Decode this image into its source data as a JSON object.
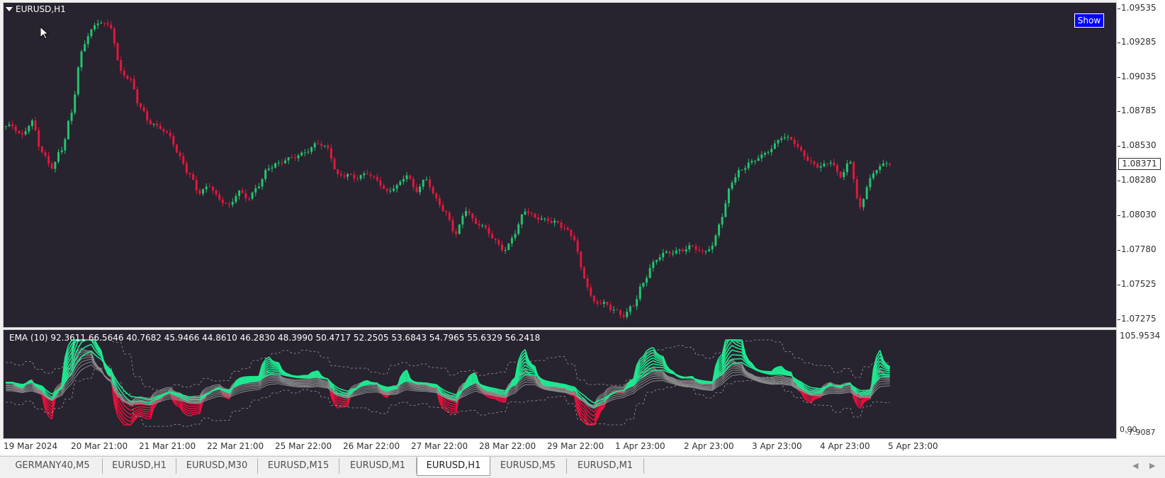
{
  "window": {
    "symbol_title": "EURUSD,H1",
    "show_button": "Show"
  },
  "price_axis": {
    "labels": [
      "1.09535",
      "1.09285",
      "1.09035",
      "1.08785",
      "1.08530",
      "1.08280",
      "1.08030",
      "1.07780",
      "1.07525",
      "1.07275"
    ],
    "current_price": "1.08371"
  },
  "indicator": {
    "title": "EMA (10) 92.3611 66.5646 40.7682 45.9466 44.8610 46.2830 48.3990 50.4717 52.2505 53.6843 54.7965 55.6329 56.2418",
    "axis_top": "105.9534",
    "axis_bottom_a": "0.00",
    "axis_bottom_b": "-7.9087"
  },
  "time_axis": {
    "labels": [
      "19 Mar 2024",
      "20 Mar 21:00",
      "21 Mar 21:00",
      "22 Mar 21:00",
      "25 Mar 22:00",
      "26 Mar 22:00",
      "27 Mar 22:00",
      "28 Mar 22:00",
      "29 Mar 22:00",
      "1 Apr 23:00",
      "2 Apr 23:00",
      "3 Apr 23:00",
      "4 Apr 23:00",
      "5 Apr 23:00"
    ]
  },
  "tabs": [
    "GERMANY40,M5",
    "EURUSD,H1",
    "EURUSD,M30",
    "EURUSD,M15",
    "EURUSD,M1",
    "EURUSD,H1",
    "EURUSD,M5",
    "EURUSD,M1"
  ],
  "active_tab_index": 5,
  "colors": {
    "background": "#27232f",
    "bull": "#23c46e",
    "bear": "#e0183e",
    "ribbon_up": "#1ee890",
    "ribbon_down": "#e8103c",
    "gray_line": "#8a8a8a"
  },
  "icons": {
    "cursor": "mouse-pointer-icon",
    "dropdown": "triangle-down-icon",
    "scroll_left": "chevron-left-icon",
    "scroll_right": "chevron-right-icon"
  },
  "chart_data": {
    "type": "candlestick",
    "price_series_close": [
      1.0865,
      1.0858,
      1.0868,
      1.0846,
      1.0835,
      1.0848,
      1.0874,
      1.0918,
      1.0935,
      1.0941,
      1.0937,
      1.0905,
      1.0898,
      1.0878,
      1.0867,
      1.0864,
      1.0858,
      1.0842,
      1.0829,
      1.0816,
      1.0822,
      1.0812,
      1.0807,
      1.0817,
      1.0812,
      1.0822,
      1.0835,
      1.0838,
      1.0841,
      1.0843,
      1.0847,
      1.0853,
      1.0849,
      1.0829,
      1.0829,
      1.0827,
      1.0831,
      1.0826,
      1.0817,
      1.0821,
      1.0829,
      1.0818,
      1.0827,
      1.0812,
      1.0801,
      1.0786,
      1.0804,
      1.0795,
      1.0791,
      1.0781,
      1.0774,
      1.0787,
      1.0804,
      1.0799,
      1.0797,
      1.0795,
      1.0791,
      1.0783,
      1.0755,
      1.0737,
      1.0736,
      1.0731,
      1.0727,
      1.0735,
      1.0751,
      1.0765,
      1.0772,
      1.0773,
      1.0775,
      1.0778,
      1.0773,
      1.0777,
      1.0799,
      1.0825,
      1.0834,
      1.0839,
      1.0843,
      1.0848,
      1.0857,
      1.0856,
      1.0847,
      1.0838,
      1.0835,
      1.0839,
      1.0829,
      1.0839,
      1.0805,
      1.0826,
      1.0836,
      1.0838
    ],
    "y_range": [
      1.07275,
      1.09535
    ]
  }
}
